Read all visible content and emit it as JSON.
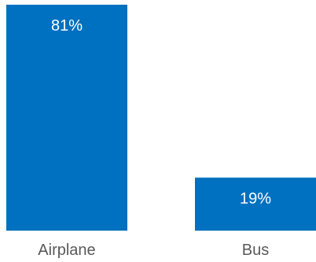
{
  "chart_data": {
    "type": "bar",
    "categories": [
      "Airplane",
      "Bus"
    ],
    "values": [
      81,
      19
    ],
    "value_labels": [
      "81%",
      "19%"
    ],
    "title": "",
    "xlabel": "",
    "ylabel": "",
    "ylim": [
      0,
      81
    ],
    "grid": false,
    "legend": "none"
  },
  "colors": {
    "bar": "#0070c0",
    "value_label": "#ffffff",
    "tick_label": "#595959",
    "background": "#ffffff"
  }
}
